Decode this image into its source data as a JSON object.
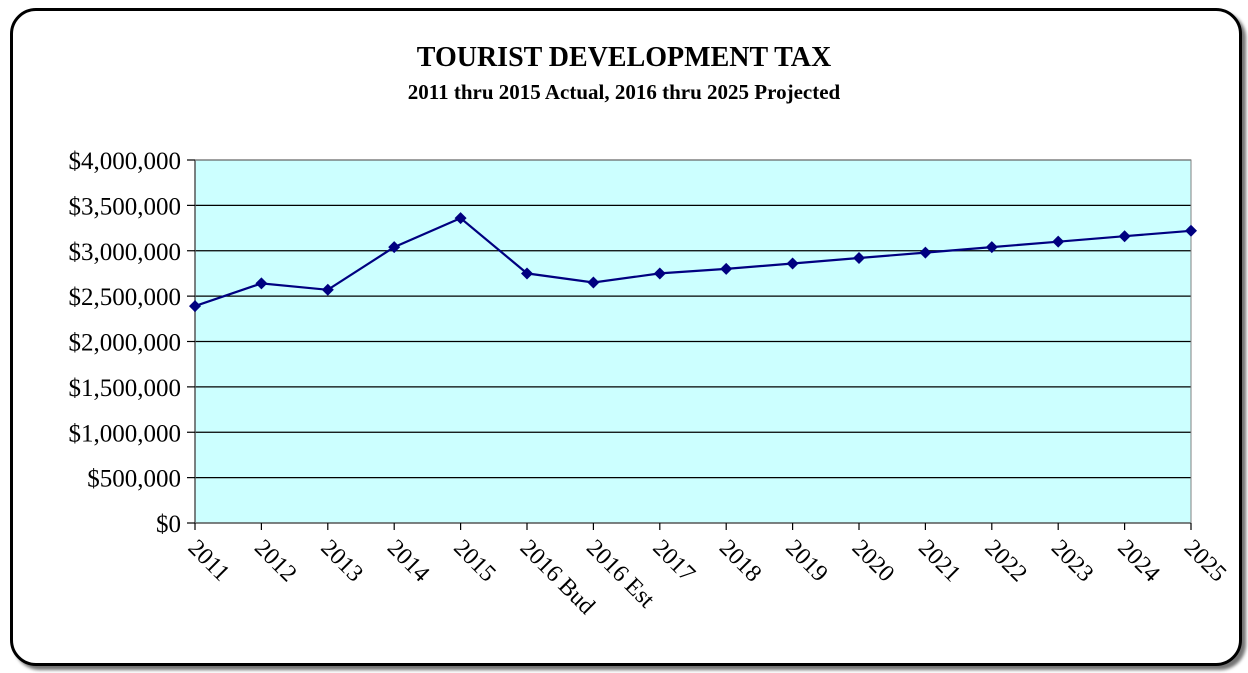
{
  "chart_data": {
    "type": "line",
    "title": "TOURIST DEVELOPMENT TAX",
    "subtitle": "2011 thru 2015 Actual, 2016 thru 2025 Projected",
    "categories": [
      "2011",
      "2012",
      "2013",
      "2014",
      "2015",
      "2016 Bud",
      "2016 Est",
      "2017",
      "2018",
      "2019",
      "2020",
      "2021",
      "2022",
      "2023",
      "2024",
      "2025"
    ],
    "series": [
      {
        "values": [
          2390000,
          2640000,
          2570000,
          3040000,
          3360000,
          2750000,
          2650000,
          2750000,
          2800000,
          2860000,
          2920000,
          2980000,
          3040000,
          3100000,
          3160000,
          3220000
        ]
      }
    ],
    "ylim": [
      0,
      4000000
    ],
    "yticks": [
      0,
      500000,
      1000000,
      1500000,
      2000000,
      2500000,
      3000000,
      3500000,
      4000000
    ],
    "ytick_labels": [
      "$0",
      "$500,000",
      "$1,000,000",
      "$1,500,000",
      "$2,000,000",
      "$2,500,000",
      "$3,000,000",
      "$3,500,000",
      "$4,000,000"
    ],
    "grid": true,
    "legend": "none",
    "colors": {
      "line": "#000080",
      "marker": "#000080",
      "plot_background": "#CCFFFF",
      "gridline": "#000000"
    }
  }
}
